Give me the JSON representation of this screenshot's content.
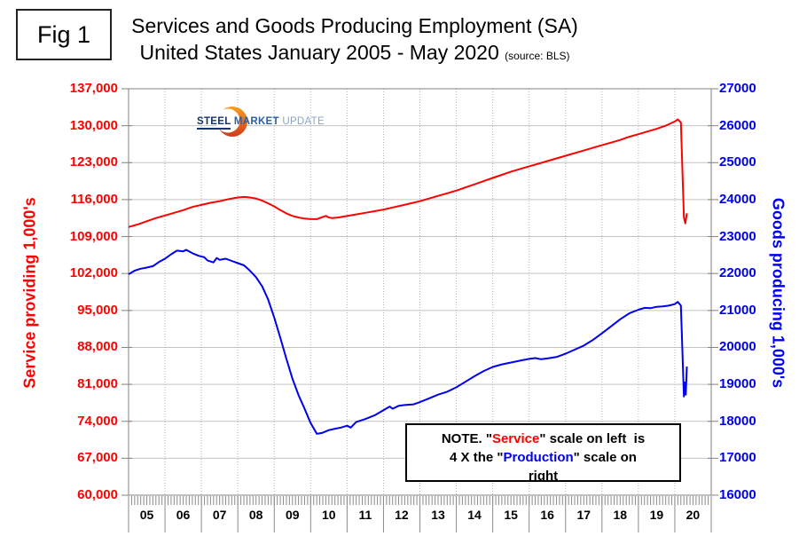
{
  "figure": {
    "label": "Fig 1"
  },
  "header": {
    "title_line1": "Services and Goods Producing Employment (SA)",
    "title_line2": "United States January 2005 - May 2020",
    "source": "(source: BLS)"
  },
  "logo": {
    "word1": "STEEL",
    "word2": "MARKET",
    "word3": "UPDATE",
    "icon": "orange-crescent"
  },
  "note": {
    "l1a": "NOTE. \"",
    "l1b": "Service",
    "l1c": "\" scale on left  is",
    "l2a": "4 X the \"",
    "l2b": "Production",
    "l2c": "\" scale on",
    "l3": "right"
  },
  "chart_data": {
    "type": "line",
    "title": "Services and Goods Producing Employment (SA) United States January 2005 - May 2020",
    "grid": {
      "horizontal": "solid",
      "vertical": "dotted-yearly",
      "minor_x_ticks": "monthly"
    },
    "x_axis": {
      "range": [
        2005,
        2021
      ],
      "year_labels": [
        "05",
        "06",
        "07",
        "08",
        "09",
        "10",
        "11",
        "12",
        "13",
        "14",
        "15",
        "16",
        "17",
        "18",
        "19",
        "20"
      ]
    },
    "left_axis": {
      "label": "Service providing 1,000's",
      "color": "#ff0000",
      "range": [
        60000,
        137000
      ],
      "tick_labels": [
        "137,000",
        "130,000",
        "123,000",
        "116,000",
        "109,000",
        "102,000",
        "95,000",
        "88,000",
        "81,000",
        "74,000",
        "67,000",
        "60,000"
      ]
    },
    "right_axis": {
      "label": "Goods producing 1,000's",
      "color": "#0000ee",
      "range": [
        16000,
        27000
      ],
      "tick_labels": [
        "27000",
        "26000",
        "25000",
        "24000",
        "23000",
        "22000",
        "21000",
        "20000",
        "19000",
        "18000",
        "17000",
        "16000"
      ]
    },
    "series": [
      {
        "name": "Service providing",
        "axis": "left",
        "color": "#ff0000",
        "points": [
          [
            2005.0,
            110800
          ],
          [
            2005.25,
            111300
          ],
          [
            2005.5,
            111900
          ],
          [
            2005.75,
            112500
          ],
          [
            2006.0,
            113000
          ],
          [
            2006.25,
            113500
          ],
          [
            2006.5,
            114000
          ],
          [
            2006.75,
            114600
          ],
          [
            2007.0,
            115000
          ],
          [
            2007.25,
            115400
          ],
          [
            2007.5,
            115700
          ],
          [
            2007.75,
            116100
          ],
          [
            2008.0,
            116400
          ],
          [
            2008.17,
            116500
          ],
          [
            2008.33,
            116400
          ],
          [
            2008.5,
            116200
          ],
          [
            2008.67,
            115800
          ],
          [
            2008.83,
            115300
          ],
          [
            2009.0,
            114700
          ],
          [
            2009.17,
            114000
          ],
          [
            2009.33,
            113400
          ],
          [
            2009.5,
            112900
          ],
          [
            2009.67,
            112600
          ],
          [
            2009.83,
            112400
          ],
          [
            2010.0,
            112300
          ],
          [
            2010.17,
            112300
          ],
          [
            2010.33,
            112700
          ],
          [
            2010.42,
            112900
          ],
          [
            2010.5,
            112600
          ],
          [
            2010.58,
            112500
          ],
          [
            2010.75,
            112600
          ],
          [
            2010.92,
            112800
          ],
          [
            2011.25,
            113200
          ],
          [
            2011.5,
            113500
          ],
          [
            2011.75,
            113800
          ],
          [
            2012.0,
            114100
          ],
          [
            2012.25,
            114500
          ],
          [
            2012.5,
            114900
          ],
          [
            2012.75,
            115300
          ],
          [
            2013.0,
            115700
          ],
          [
            2013.25,
            116200
          ],
          [
            2013.5,
            116700
          ],
          [
            2013.75,
            117200
          ],
          [
            2014.0,
            117700
          ],
          [
            2014.25,
            118300
          ],
          [
            2014.5,
            118900
          ],
          [
            2014.75,
            119500
          ],
          [
            2015.0,
            120100
          ],
          [
            2015.25,
            120700
          ],
          [
            2015.5,
            121300
          ],
          [
            2015.75,
            121800
          ],
          [
            2016.0,
            122300
          ],
          [
            2016.25,
            122800
          ],
          [
            2016.5,
            123300
          ],
          [
            2016.75,
            123800
          ],
          [
            2017.0,
            124300
          ],
          [
            2017.25,
            124800
          ],
          [
            2017.5,
            125300
          ],
          [
            2017.75,
            125800
          ],
          [
            2018.0,
            126300
          ],
          [
            2018.25,
            126800
          ],
          [
            2018.5,
            127300
          ],
          [
            2018.75,
            127900
          ],
          [
            2019.0,
            128400
          ],
          [
            2019.25,
            128900
          ],
          [
            2019.5,
            129400
          ],
          [
            2019.75,
            130000
          ],
          [
            2020.0,
            130800
          ],
          [
            2020.083,
            131200
          ],
          [
            2020.167,
            130600
          ],
          [
            2020.25,
            112600
          ],
          [
            2020.29,
            111500
          ],
          [
            2020.33,
            113400
          ]
        ]
      },
      {
        "name": "Goods producing",
        "axis": "right",
        "color": "#0000ee",
        "points": [
          [
            2005.0,
            21980
          ],
          [
            2005.17,
            22080
          ],
          [
            2005.33,
            22130
          ],
          [
            2005.5,
            22160
          ],
          [
            2005.67,
            22200
          ],
          [
            2005.83,
            22310
          ],
          [
            2006.0,
            22400
          ],
          [
            2006.17,
            22520
          ],
          [
            2006.33,
            22620
          ],
          [
            2006.5,
            22600
          ],
          [
            2006.58,
            22640
          ],
          [
            2006.75,
            22550
          ],
          [
            2006.92,
            22480
          ],
          [
            2007.08,
            22440
          ],
          [
            2007.17,
            22350
          ],
          [
            2007.33,
            22300
          ],
          [
            2007.42,
            22420
          ],
          [
            2007.5,
            22370
          ],
          [
            2007.67,
            22400
          ],
          [
            2007.83,
            22340
          ],
          [
            2008.0,
            22280
          ],
          [
            2008.17,
            22220
          ],
          [
            2008.33,
            22080
          ],
          [
            2008.5,
            21900
          ],
          [
            2008.67,
            21650
          ],
          [
            2008.83,
            21300
          ],
          [
            2009.0,
            20800
          ],
          [
            2009.17,
            20250
          ],
          [
            2009.33,
            19700
          ],
          [
            2009.5,
            19150
          ],
          [
            2009.67,
            18700
          ],
          [
            2009.83,
            18350
          ],
          [
            2010.0,
            17950
          ],
          [
            2010.17,
            17660
          ],
          [
            2010.33,
            17690
          ],
          [
            2010.5,
            17760
          ],
          [
            2010.67,
            17800
          ],
          [
            2010.83,
            17830
          ],
          [
            2011.0,
            17880
          ],
          [
            2011.1,
            17830
          ],
          [
            2011.25,
            17980
          ],
          [
            2011.5,
            18060
          ],
          [
            2011.75,
            18160
          ],
          [
            2012.0,
            18300
          ],
          [
            2012.17,
            18400
          ],
          [
            2012.25,
            18340
          ],
          [
            2012.42,
            18420
          ],
          [
            2012.58,
            18440
          ],
          [
            2012.83,
            18460
          ],
          [
            2013.0,
            18520
          ],
          [
            2013.25,
            18620
          ],
          [
            2013.5,
            18720
          ],
          [
            2013.75,
            18800
          ],
          [
            2014.0,
            18920
          ],
          [
            2014.25,
            19070
          ],
          [
            2014.5,
            19220
          ],
          [
            2014.75,
            19360
          ],
          [
            2015.0,
            19470
          ],
          [
            2015.25,
            19540
          ],
          [
            2015.5,
            19590
          ],
          [
            2015.75,
            19640
          ],
          [
            2016.0,
            19690
          ],
          [
            2016.17,
            19710
          ],
          [
            2016.33,
            19680
          ],
          [
            2016.5,
            19700
          ],
          [
            2016.75,
            19740
          ],
          [
            2017.0,
            19830
          ],
          [
            2017.25,
            19940
          ],
          [
            2017.5,
            20050
          ],
          [
            2017.75,
            20200
          ],
          [
            2018.0,
            20380
          ],
          [
            2018.25,
            20570
          ],
          [
            2018.5,
            20760
          ],
          [
            2018.75,
            20920
          ],
          [
            2019.0,
            21020
          ],
          [
            2019.17,
            21070
          ],
          [
            2019.33,
            21060
          ],
          [
            2019.5,
            21100
          ],
          [
            2019.67,
            21110
          ],
          [
            2019.83,
            21130
          ],
          [
            2020.0,
            21170
          ],
          [
            2020.083,
            21230
          ],
          [
            2020.167,
            21130
          ],
          [
            2020.25,
            18670
          ],
          [
            2020.28,
            19050
          ],
          [
            2020.3,
            18720
          ],
          [
            2020.33,
            19480
          ]
        ]
      }
    ]
  }
}
